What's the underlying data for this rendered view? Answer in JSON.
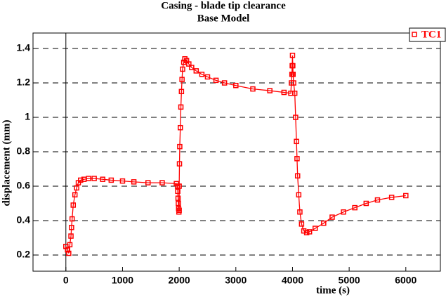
{
  "chart_data": {
    "type": "line",
    "title": "Casing - blade tip clearance",
    "subtitle": "Base Model",
    "x_label": "time (s)",
    "y_label": "displacement (mm)",
    "xlim": [
      -580,
      6610
    ],
    "ylim": [
      0.106,
      1.49
    ],
    "xticks": [
      0,
      1000,
      2000,
      3000,
      4000,
      5000,
      6000
    ],
    "yticks": [
      0.2,
      0.4,
      0.6,
      0.8,
      1,
      1.2,
      1.4
    ],
    "grid": true,
    "legend": "upper right",
    "series": [
      {
        "name": "TC1",
        "color": "#ff0000",
        "x": [
          0,
          30,
          50,
          70,
          90,
          100,
          110,
          130,
          160,
          190,
          220,
          260,
          320,
          400,
          500,
          650,
          800,
          1000,
          1200,
          1450,
          1700,
          1950,
          1970,
          1975,
          1980,
          1985,
          1990,
          1995,
          2000,
          2000,
          2005,
          2010,
          2020,
          2030,
          2040,
          2050,
          2060,
          2080,
          2100,
          2130,
          2170,
          2220,
          2300,
          2400,
          2500,
          2650,
          2800,
          3000,
          3300,
          3600,
          3850,
          3970,
          3980,
          3990,
          3995,
          4000,
          4005,
          4010,
          4020,
          4040,
          4055,
          4070,
          4080,
          4090,
          4110,
          4130,
          4160,
          4200,
          4250,
          4300,
          4400,
          4550,
          4700,
          4900,
          5100,
          5300,
          5500,
          5750,
          6000
        ],
        "values": [
          0.25,
          0.23,
          0.21,
          0.26,
          0.31,
          0.36,
          0.41,
          0.49,
          0.55,
          0.59,
          0.62,
          0.635,
          0.64,
          0.645,
          0.645,
          0.64,
          0.635,
          0.63,
          0.625,
          0.62,
          0.62,
          0.615,
          0.6,
          0.57,
          0.53,
          0.5,
          0.47,
          0.45,
          0.46,
          0.6,
          0.73,
          0.83,
          0.94,
          1.06,
          1.15,
          1.22,
          1.28,
          1.32,
          1.34,
          1.33,
          1.31,
          1.29,
          1.27,
          1.25,
          1.235,
          1.215,
          1.2,
          1.185,
          1.165,
          1.155,
          1.145,
          1.14,
          1.2,
          1.25,
          1.3,
          1.36,
          1.3,
          1.25,
          1.2,
          1.14,
          1.0,
          0.86,
          0.76,
          0.66,
          0.55,
          0.45,
          0.38,
          0.34,
          0.33,
          0.335,
          0.355,
          0.385,
          0.42,
          0.45,
          0.475,
          0.5,
          0.52,
          0.535,
          0.545
        ]
      }
    ]
  }
}
